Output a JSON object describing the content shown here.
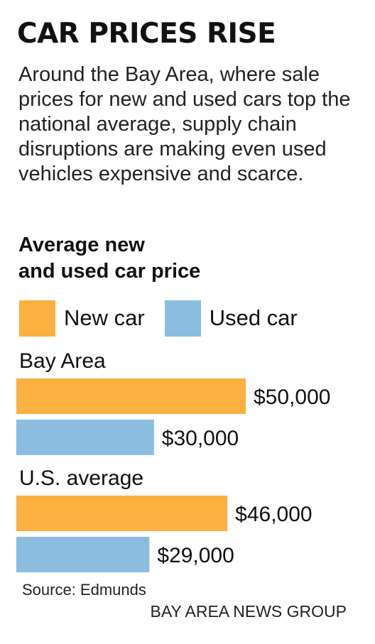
{
  "headline": "CAR PRICES RISE",
  "dek": "Around the Bay Area, where sale prices for new and used cars top the national average, supply chain disruptions are making even used vehicles expensive and scarce.",
  "colors": {
    "new": "#FBB040",
    "used": "#8BBDE0"
  },
  "chart_data": {
    "type": "bar",
    "orientation": "horizontal",
    "title_lines": [
      "Average new",
      "and used car price"
    ],
    "categories": [
      "Bay Area",
      "U.S. average"
    ],
    "series": [
      {
        "name": "New car",
        "color": "#FBB040",
        "values": [
          50000,
          46000
        ],
        "labels": [
          "$50,000",
          "$46,000"
        ]
      },
      {
        "name": "Used car",
        "color": "#8BBDE0",
        "values": [
          30000,
          29000
        ],
        "labels": [
          "$30,000",
          "$29,000"
        ]
      }
    ],
    "legend": "top",
    "grid": false,
    "xlim": [
      0,
      50000
    ]
  },
  "source": "Source: Edmunds",
  "credit": "BAY AREA NEWS GROUP"
}
